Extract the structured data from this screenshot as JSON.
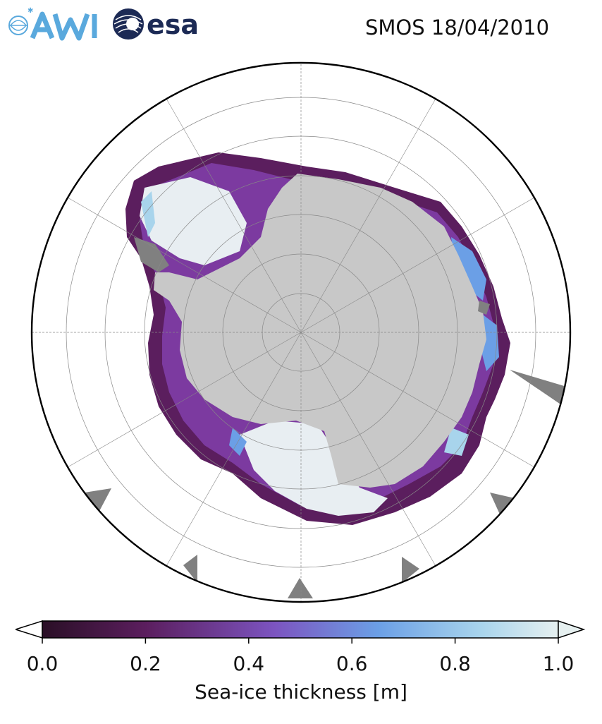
{
  "header": {
    "title": "SMOS 18/04/2010",
    "logo_left_text": "AWI",
    "logo_right_text": "esa"
  },
  "map": {
    "projection": "south-polar-stereographic",
    "land_color": "#c8c8c8",
    "ocean_color": "#ffffff",
    "missing_color": "#808080",
    "gridlines": true
  },
  "colorbar": {
    "label": "Sea-ice thickness [m]",
    "ticks": [
      "0.0",
      "0.2",
      "0.4",
      "0.6",
      "0.8",
      "1.0"
    ],
    "range": [
      0.0,
      1.0
    ],
    "extend": "both",
    "colors": [
      "#2a0f26",
      "#5b1e5e",
      "#7c54c0",
      "#6b9fe6",
      "#a8d4ec",
      "#e6f0f0"
    ]
  }
}
